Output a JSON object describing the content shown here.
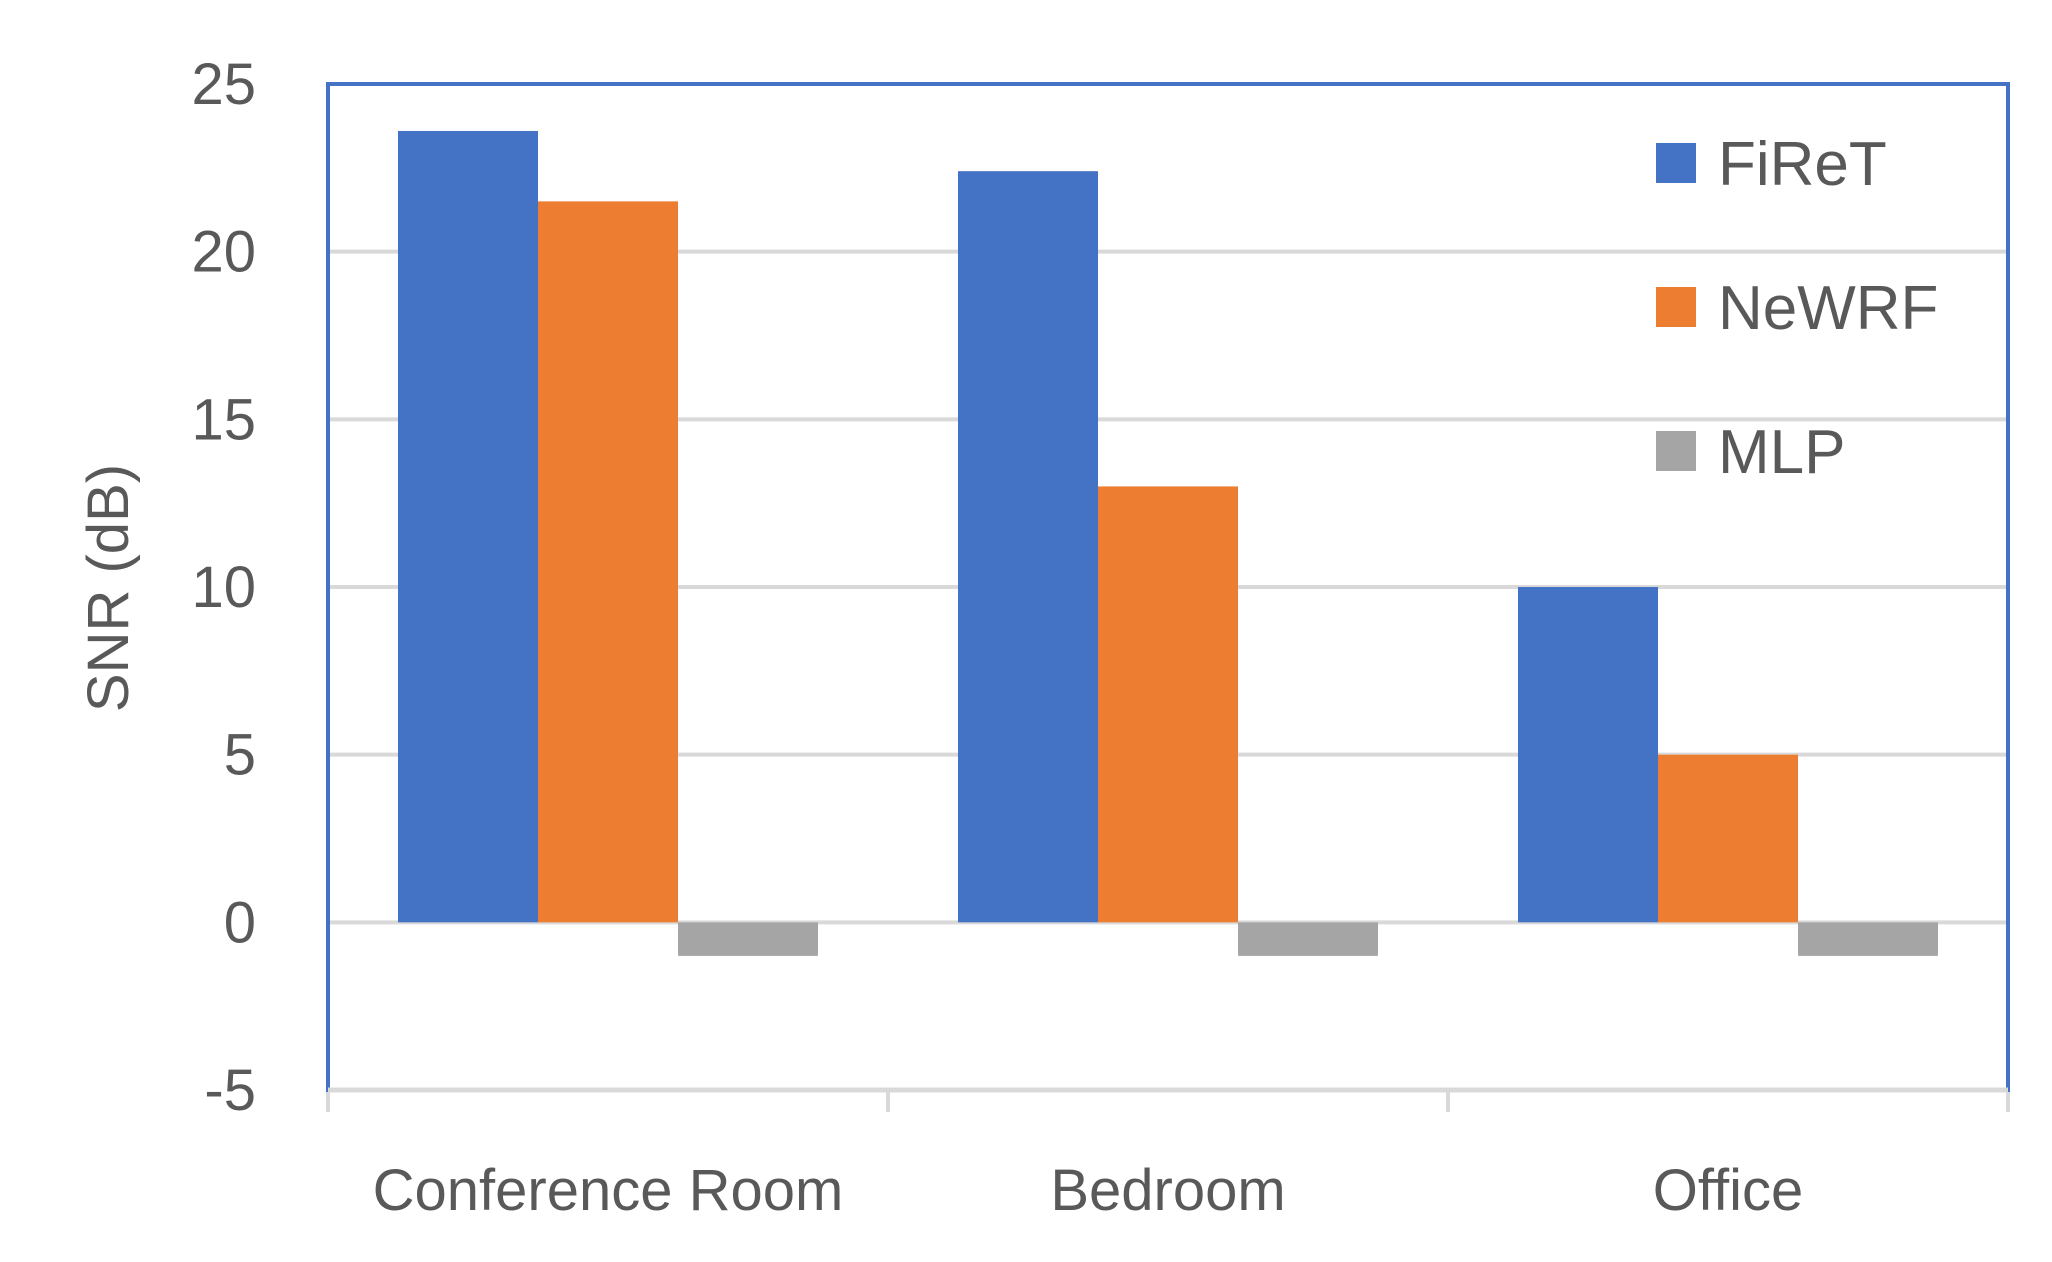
{
  "chart_data": {
    "type": "bar",
    "categories": [
      "Conference Room",
      "Bedroom",
      "Office"
    ],
    "series": [
      {
        "name": "FiReT",
        "color": "#4472C4",
        "values": [
          23.6,
          22.4,
          10.0
        ]
      },
      {
        "name": "NeWRF",
        "color": "#ED7D31",
        "values": [
          21.5,
          13.0,
          5.0
        ]
      },
      {
        "name": "MLP",
        "color": "#A5A5A5",
        "values": [
          -1.0,
          -1.0,
          -1.0
        ]
      }
    ],
    "ylabel": "SNR (dB)",
    "xlabel": "",
    "ylim": [
      -5,
      25
    ],
    "yticks": [
      25,
      20,
      15,
      10,
      5,
      0,
      -5
    ],
    "ytick_labels": [
      "25",
      "20",
      "15",
      "10",
      "5",
      "0",
      "-5"
    ],
    "grid": true,
    "legend_position": "top-right",
    "frame_color": "#4472C4",
    "grid_color": "#D9D9D9"
  }
}
